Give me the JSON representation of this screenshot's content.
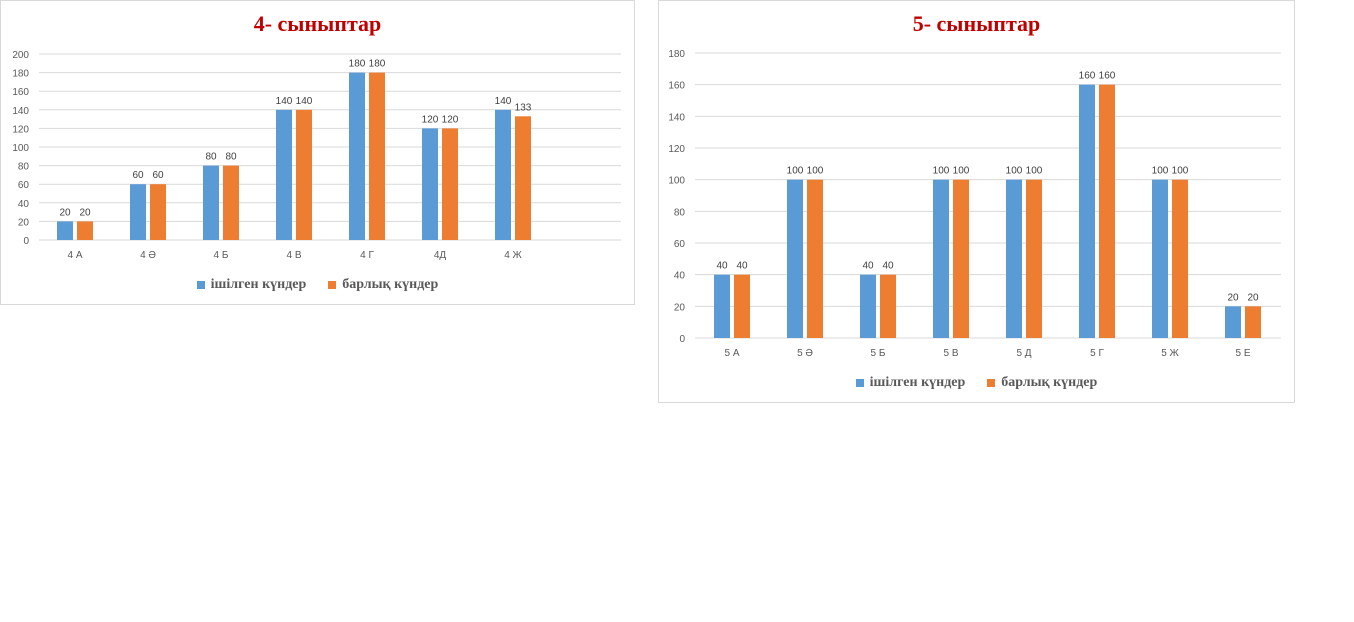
{
  "colors": {
    "series1": "#5B9BD5",
    "series2": "#ED7D31",
    "title": "#C00000",
    "grid": "#d9d9d9",
    "axis_text": "#595959"
  },
  "legend": {
    "series1": "ішілген күндер",
    "series2": "барлық күндер"
  },
  "chart_data": [
    {
      "type": "bar",
      "title": "4- сыныптар",
      "categories": [
        "4 А",
        "4 Ә",
        "4 Б",
        "4 В",
        "4 Г",
        "4Д",
        "4 Ж"
      ],
      "ylim": [
        0,
        200
      ],
      "yticks": [
        0,
        20,
        40,
        60,
        80,
        100,
        120,
        140,
        160,
        180,
        200
      ],
      "grid": true,
      "legend_position": "bottom",
      "series": [
        {
          "name": "ішілген күндер",
          "values": [
            20,
            60,
            80,
            140,
            180,
            120,
            140
          ]
        },
        {
          "name": "барлық күндер",
          "values": [
            20,
            60,
            80,
            140,
            180,
            120,
            133
          ]
        }
      ]
    },
    {
      "type": "bar",
      "title": "5- сыныптар",
      "categories": [
        "5 А",
        "5 Ә",
        "5 Б",
        "5 В",
        "5 Д",
        "5 Г",
        "5 Ж",
        "5 Е"
      ],
      "ylim": [
        0,
        180
      ],
      "yticks": [
        0,
        20,
        40,
        60,
        80,
        100,
        120,
        140,
        160,
        180
      ],
      "grid": true,
      "legend_position": "bottom",
      "series": [
        {
          "name": "ішілген күндер",
          "values": [
            40,
            100,
            40,
            100,
            100,
            160,
            100,
            20
          ]
        },
        {
          "name": "барлық күндер",
          "values": [
            40,
            100,
            40,
            100,
            100,
            160,
            100,
            20
          ]
        }
      ]
    }
  ]
}
